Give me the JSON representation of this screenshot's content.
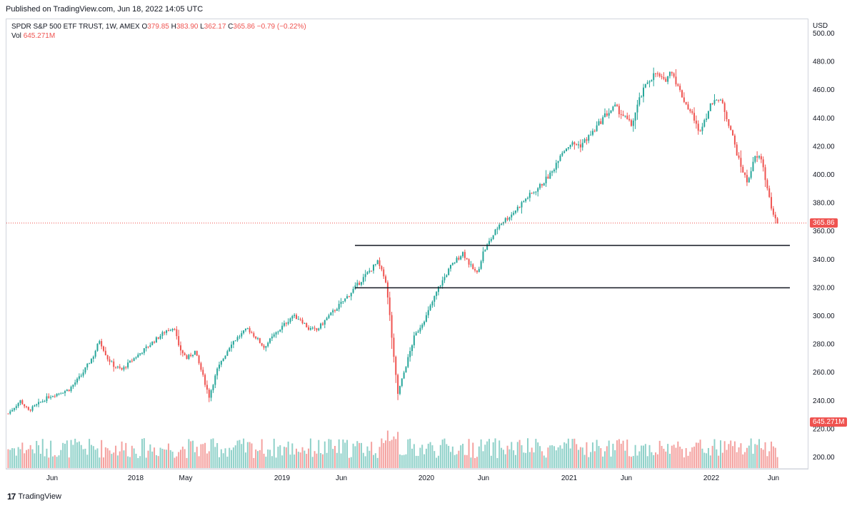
{
  "header": {
    "published": "Published on TradingView.com, Jun 18, 2022 14:05 UTC"
  },
  "legend": {
    "symbol": "SPDR S&P 500 ETF TRUST, 1W, AMEX",
    "o_label": "O",
    "o_value": "379.85",
    "h_label": "H",
    "h_value": "383.90",
    "l_label": "L",
    "l_value": "362.17",
    "c_label": "C",
    "c_value": "365.86",
    "change": "−0.79 (−0.22%)",
    "vol_label": "Vol",
    "vol_value": "645.271M"
  },
  "currency": "USD",
  "footer": {
    "brand": "TradingView",
    "logo_glyph": "17"
  },
  "colors": {
    "up": "#26a69a",
    "down": "#ef5350",
    "up_vol": "#8fd1c9",
    "down_vol": "#f4a19f",
    "last_price": "#ef5350",
    "support": "#131722"
  },
  "chart_data": {
    "type": "candlestick",
    "title": "SPDR S&P 500 ETF TRUST, 1W, AMEX",
    "ylabel": "USD",
    "ylim": [
      200,
      500
    ],
    "y_ticks": [
      "200.00",
      "220.00",
      "240.00",
      "260.00",
      "280.00",
      "300.00",
      "320.00",
      "340.00",
      "360.00",
      "380.00",
      "400.00",
      "420.00",
      "440.00",
      "460.00",
      "480.00",
      "500.00"
    ],
    "x_ticks": [
      "Jun",
      "2018",
      "May",
      "2019",
      "Jun",
      "2020",
      "Jun",
      "2021",
      "Jun",
      "2022",
      "Jun"
    ],
    "last_price": 365.86,
    "last_volume_label": "645.271M",
    "horizontal_levels": [
      350,
      320
    ],
    "price_path": [
      [
        0,
        231
      ],
      [
        6,
        240
      ],
      [
        10,
        233
      ],
      [
        20,
        243
      ],
      [
        30,
        248
      ],
      [
        36,
        258
      ],
      [
        42,
        272
      ],
      [
        45,
        283
      ],
      [
        49,
        270
      ],
      [
        52,
        265
      ],
      [
        56,
        262
      ],
      [
        62,
        270
      ],
      [
        70,
        280
      ],
      [
        78,
        290
      ],
      [
        82,
        292
      ],
      [
        84,
        278
      ],
      [
        88,
        270
      ],
      [
        92,
        275
      ],
      [
        95,
        262
      ],
      [
        99,
        243
      ],
      [
        103,
        262
      ],
      [
        110,
        281
      ],
      [
        118,
        291
      ],
      [
        122,
        285
      ],
      [
        126,
        278
      ],
      [
        132,
        288
      ],
      [
        140,
        300
      ],
      [
        144,
        298
      ],
      [
        148,
        291
      ],
      [
        152,
        290
      ],
      [
        158,
        300
      ],
      [
        166,
        312
      ],
      [
        172,
        322
      ],
      [
        178,
        332
      ],
      [
        182,
        338
      ],
      [
        186,
        325
      ],
      [
        188,
        300
      ],
      [
        190,
        270
      ],
      [
        192,
        245
      ],
      [
        195,
        260
      ],
      [
        200,
        285
      ],
      [
        206,
        300
      ],
      [
        212,
        320
      ],
      [
        218,
        335
      ],
      [
        224,
        345
      ],
      [
        228,
        335
      ],
      [
        231,
        330
      ],
      [
        234,
        345
      ],
      [
        238,
        355
      ],
      [
        242,
        365
      ],
      [
        248,
        372
      ],
      [
        255,
        383
      ],
      [
        262,
        392
      ],
      [
        268,
        402
      ],
      [
        272,
        415
      ],
      [
        277,
        422
      ],
      [
        282,
        421
      ],
      [
        288,
        430
      ],
      [
        294,
        442
      ],
      [
        299,
        448
      ],
      [
        303,
        442
      ],
      [
        307,
        435
      ],
      [
        311,
        453
      ],
      [
        315,
        466
      ],
      [
        319,
        472
      ],
      [
        323,
        466
      ],
      [
        327,
        474
      ],
      [
        330,
        462
      ],
      [
        334,
        450
      ],
      [
        338,
        440
      ],
      [
        340,
        430
      ],
      [
        344,
        442
      ],
      [
        348,
        455
      ],
      [
        352,
        450
      ],
      [
        356,
        432
      ],
      [
        360,
        410
      ],
      [
        364,
        395
      ],
      [
        368,
        412
      ],
      [
        371,
        412
      ],
      [
        374,
        390
      ],
      [
        377,
        370
      ],
      [
        379,
        365.86
      ]
    ],
    "volume_label_series": "Vol"
  }
}
